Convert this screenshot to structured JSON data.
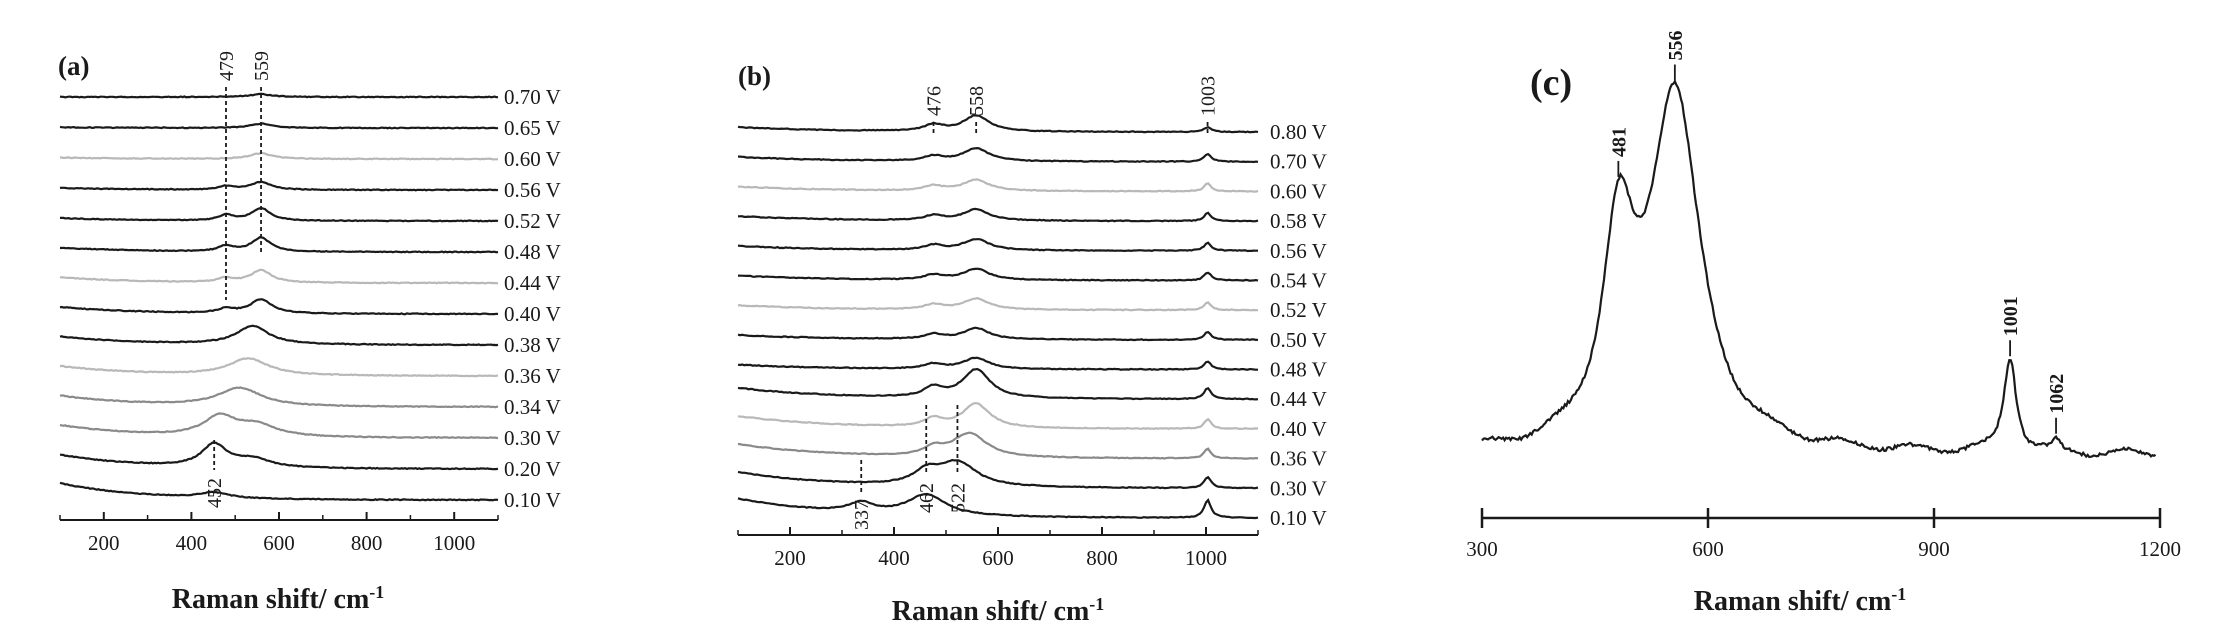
{
  "colors": {
    "dark": "#1a1a1a",
    "gray": "#8a8a8a",
    "light_gray": "#b8b8b8",
    "background": "#ffffff"
  },
  "chart_data": [
    {
      "type": "line",
      "panel": "(a)",
      "xlabel": "Raman shift/ cm",
      "xlabel_sup": "-1",
      "xlim": [
        100,
        1100
      ],
      "xticks": [
        200,
        400,
        600,
        800,
        1000
      ],
      "ylabel": "",
      "peak_labels": [
        "479",
        "559",
        "452"
      ],
      "peak_positions": [
        479,
        559,
        452
      ],
      "series": [
        {
          "label": "0.70 V",
          "color": "dark",
          "peaks": [
            [
              559,
              0.2,
              30
            ]
          ],
          "bg": 0.0
        },
        {
          "label": "0.65 V",
          "color": "dark",
          "peaks": [
            [
              559,
              0.3,
              30
            ]
          ],
          "bg": 0.05
        },
        {
          "label": "0.60 V",
          "color": "light",
          "peaks": [
            [
              559,
              0.4,
              30
            ]
          ],
          "bg": 0.1
        },
        {
          "label": "0.56 V",
          "color": "dark",
          "peaks": [
            [
              479,
              0.25,
              20
            ],
            [
              559,
              0.55,
              28
            ]
          ],
          "bg": 0.15
        },
        {
          "label": "0.52 V",
          "color": "dark",
          "peaks": [
            [
              479,
              0.4,
              20
            ],
            [
              559,
              0.9,
              26
            ]
          ],
          "bg": 0.2
        },
        {
          "label": "0.48 V",
          "color": "dark",
          "peaks": [
            [
              479,
              0.4,
              20
            ],
            [
              559,
              1.0,
              26
            ]
          ],
          "bg": 0.3
        },
        {
          "label": "0.44 V",
          "color": "light",
          "peaks": [
            [
              479,
              0.3,
              20
            ],
            [
              559,
              0.9,
              28
            ]
          ],
          "bg": 0.4
        },
        {
          "label": "0.40 V",
          "color": "dark",
          "peaks": [
            [
              479,
              0.3,
              22
            ],
            [
              559,
              1.0,
              30
            ]
          ],
          "bg": 0.5
        },
        {
          "label": "0.38 V",
          "color": "dark",
          "peaks": [
            [
              540,
              1.3,
              45
            ]
          ],
          "bg": 0.6
        },
        {
          "label": "0.36 V",
          "color": "light",
          "peaks": [
            [
              530,
              1.2,
              55
            ]
          ],
          "bg": 0.7
        },
        {
          "label": "0.34 V",
          "color": "gray",
          "peaks": [
            [
              510,
              1.3,
              60
            ]
          ],
          "bg": 0.8
        },
        {
          "label": "0.30 V",
          "color": "gray",
          "peaks": [
            [
              465,
              1.4,
              45
            ],
            [
              550,
              0.8,
              55
            ]
          ],
          "bg": 0.9
        },
        {
          "label": "0.20 V",
          "color": "dark",
          "peaks": [
            [
              452,
              1.6,
              35
            ],
            [
              540,
              0.6,
              50
            ]
          ],
          "bg": 1.0
        },
        {
          "label": "0.10 V",
          "color": "dark",
          "peaks": [
            [
              452,
              0.4,
              40
            ]
          ],
          "bg": 1.2
        }
      ]
    },
    {
      "type": "line",
      "panel": "(b)",
      "xlabel": "Raman shift/ cm",
      "xlabel_sup": "-1",
      "xlim": [
        100,
        1100
      ],
      "xticks": [
        200,
        400,
        600,
        800,
        1000
      ],
      "ylabel": "",
      "peak_labels": [
        "476",
        "558",
        "1003",
        "337",
        "462",
        "522"
      ],
      "peak_positions": [
        476,
        558,
        1003,
        337,
        462,
        522
      ],
      "series": [
        {
          "label": "0.80 V",
          "color": "dark",
          "peaks": [
            [
              476,
              0.4,
              22
            ],
            [
              558,
              1.0,
              30
            ],
            [
              1003,
              0.3,
              8
            ]
          ],
          "bg": 0.3
        },
        {
          "label": "0.70 V",
          "color": "dark",
          "peaks": [
            [
              476,
              0.3,
              22
            ],
            [
              558,
              0.8,
              30
            ],
            [
              1003,
              0.5,
              8
            ]
          ],
          "bg": 0.3
        },
        {
          "label": "0.60 V",
          "color": "light",
          "peaks": [
            [
              476,
              0.3,
              22
            ],
            [
              558,
              0.7,
              30
            ],
            [
              1003,
              0.5,
              8
            ]
          ],
          "bg": 0.3
        },
        {
          "label": "0.58 V",
          "color": "dark",
          "peaks": [
            [
              476,
              0.3,
              22
            ],
            [
              558,
              0.7,
              30
            ],
            [
              1003,
              0.5,
              8
            ]
          ],
          "bg": 0.3
        },
        {
          "label": "0.56 V",
          "color": "dark",
          "peaks": [
            [
              476,
              0.3,
              22
            ],
            [
              558,
              0.7,
              30
            ],
            [
              1003,
              0.5,
              8
            ]
          ],
          "bg": 0.3
        },
        {
          "label": "0.54 V",
          "color": "dark",
          "peaks": [
            [
              476,
              0.3,
              22
            ],
            [
              558,
              0.7,
              30
            ],
            [
              1003,
              0.5,
              8
            ]
          ],
          "bg": 0.3
        },
        {
          "label": "0.52 V",
          "color": "light",
          "peaks": [
            [
              476,
              0.3,
              22
            ],
            [
              558,
              0.7,
              30
            ],
            [
              1003,
              0.5,
              8
            ]
          ],
          "bg": 0.3
        },
        {
          "label": "0.50 V",
          "color": "dark",
          "peaks": [
            [
              476,
              0.3,
              22
            ],
            [
              558,
              0.7,
              30
            ],
            [
              1003,
              0.5,
              8
            ]
          ],
          "bg": 0.3
        },
        {
          "label": "0.48 V",
          "color": "dark",
          "peaks": [
            [
              476,
              0.3,
              22
            ],
            [
              558,
              0.7,
              30
            ],
            [
              1003,
              0.5,
              8
            ]
          ],
          "bg": 0.3
        },
        {
          "label": "0.44 V",
          "color": "dark",
          "peaks": [
            [
              476,
              0.6,
              22
            ],
            [
              558,
              1.8,
              32
            ],
            [
              1003,
              0.7,
              8
            ]
          ],
          "bg": 0.7
        },
        {
          "label": "0.40 V",
          "color": "light",
          "peaks": [
            [
              476,
              0.5,
              22
            ],
            [
              558,
              1.5,
              32
            ],
            [
              1003,
              0.6,
              8
            ]
          ],
          "bg": 0.8
        },
        {
          "label": "0.36 V",
          "color": "gray",
          "peaks": [
            [
              476,
              0.5,
              22
            ],
            [
              545,
              1.5,
              40
            ],
            [
              1003,
              0.6,
              8
            ]
          ],
          "bg": 0.9
        },
        {
          "label": "0.30 V",
          "color": "dark",
          "peaks": [
            [
              462,
              0.8,
              30
            ],
            [
              522,
              1.5,
              45
            ],
            [
              1003,
              0.7,
              8
            ]
          ],
          "bg": 1.0
        },
        {
          "label": "0.10 V",
          "color": "dark",
          "peaks": [
            [
              337,
              0.6,
              30
            ],
            [
              462,
              1.3,
              45
            ],
            [
              1003,
              1.1,
              8
            ]
          ],
          "bg": 1.2
        }
      ]
    },
    {
      "type": "line",
      "panel": "(c)",
      "xlabel": "Raman shift/ cm",
      "xlabel_sup": "-1",
      "xlim": [
        300,
        1200
      ],
      "xticks": [
        300,
        600,
        900,
        1200
      ],
      "ylabel": "",
      "peak_labels": [
        "481",
        "556",
        "1001",
        "1062"
      ],
      "peak_positions": [
        481,
        556,
        1001,
        1062
      ],
      "series": [
        {
          "label": "",
          "color": "dark",
          "peaks": [
            [
              481,
              0.55,
              25
            ],
            [
              556,
              1.0,
              40
            ],
            [
              1001,
              0.27,
              10
            ],
            [
              1062,
              0.03,
              5
            ]
          ],
          "bg": 0.0
        }
      ]
    }
  ]
}
